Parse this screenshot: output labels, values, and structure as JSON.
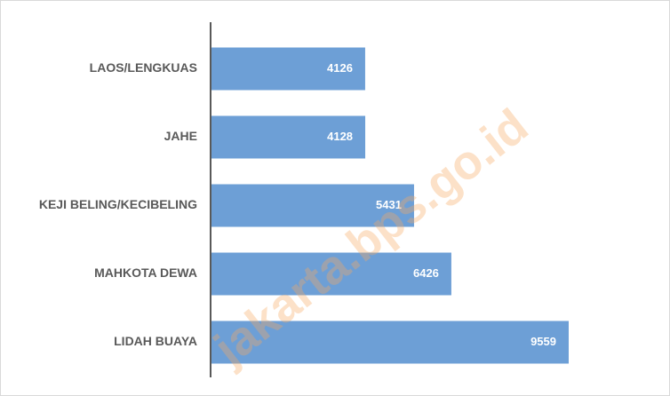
{
  "chart_data": {
    "type": "bar",
    "orientation": "horizontal",
    "categories": [
      "LAOS/LENGKUAS",
      "JAHE",
      "KEJI BELING/KECIBELING",
      "MAHKOTA DEWA",
      "LIDAH BUAYA"
    ],
    "values": [
      4126,
      4128,
      5431,
      6426,
      9559
    ],
    "color": "#6d9fd6",
    "watermark": "jakarta.bps.go.id"
  }
}
